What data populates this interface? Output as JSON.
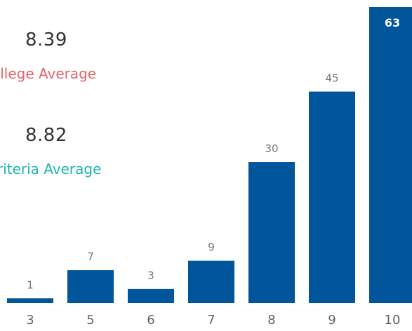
{
  "kpis": {
    "college_average": {
      "value": "8.39",
      "label": "College Average",
      "color": "#e8636b"
    },
    "criteria_average": {
      "value": "8.82",
      "label": "Criteria Average",
      "color": "#1fb5b0"
    }
  },
  "chart_data": {
    "type": "bar",
    "categories": [
      "3",
      "5",
      "6",
      "7",
      "8",
      "9",
      "10"
    ],
    "values": [
      1,
      7,
      3,
      9,
      30,
      45,
      63
    ],
    "bar_color": "#00559b",
    "ylim": [
      0,
      63
    ]
  }
}
